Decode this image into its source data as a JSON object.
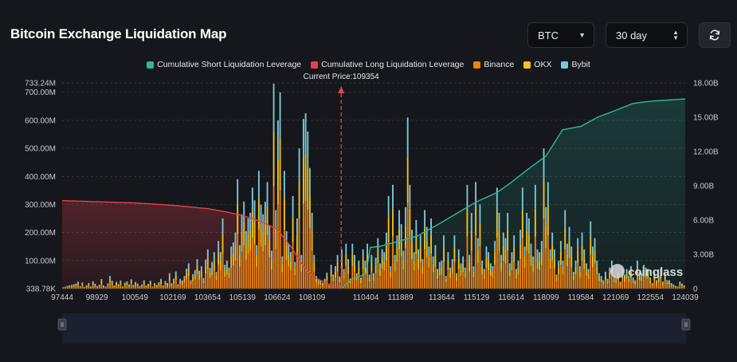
{
  "page": {
    "title": "Bitcoin Exchange Liquidation Map"
  },
  "controls": {
    "symbol": "BTC",
    "period": "30 day"
  },
  "watermark": "coinglass",
  "chart_data": {
    "type": "bar",
    "stacked": true,
    "legend": [
      {
        "name": "Cumulative Short Liquidation Leverage",
        "color": "#2fb89a"
      },
      {
        "name": "Cumulative Long Liquidation Leverage",
        "color": "#e8404a"
      },
      {
        "name": "Binance",
        "color": "#f0820f"
      },
      {
        "name": "OKX",
        "color": "#f4c21a"
      },
      {
        "name": "Bybit",
        "color": "#7cc8d8"
      }
    ],
    "current_price_label": "Current Price:109354",
    "current_price": 109354,
    "x_ticks": [
      "97444",
      "98929",
      "100549",
      "102169",
      "103654",
      "105139",
      "106624",
      "108109",
      "110404",
      "111889",
      "113644",
      "115129",
      "116614",
      "118099",
      "119584",
      "121069",
      "122554",
      "124039"
    ],
    "x_range": [
      97444,
      124039
    ],
    "y_left_ticks": [
      "338.78K",
      "100.00M",
      "200.00M",
      "300.00M",
      "400.00M",
      "500.00M",
      "600.00M",
      "700.00M",
      "733.24M"
    ],
    "y_left_range": [
      0.33878,
      733.24
    ],
    "y_left_unit": "M",
    "y_right_ticks": [
      "0",
      "3.00B",
      "6.00B",
      "9.00B",
      "12.00B",
      "15.00B",
      "18.00B"
    ],
    "y_right_range": [
      0,
      18
    ],
    "y_right_unit": "B",
    "grid": true,
    "legend_position": "top-center",
    "bar_totals": [
      5,
      7,
      10,
      12,
      13,
      16,
      18,
      25,
      9,
      22,
      6,
      12,
      20,
      8,
      26,
      17,
      9,
      14,
      34,
      12,
      7,
      19,
      45,
      28,
      11,
      24,
      16,
      29,
      8,
      21,
      26,
      15,
      33,
      13,
      24,
      18,
      9,
      15,
      30,
      11,
      17,
      28,
      7,
      20,
      13,
      23,
      35,
      11,
      27,
      20,
      55,
      19,
      36,
      61,
      16,
      35,
      29,
      45,
      71,
      90,
      30,
      52,
      66,
      105,
      64,
      80,
      38,
      104,
      140,
      74,
      95,
      130,
      60,
      170,
      130,
      250,
      85,
      100,
      75,
      150,
      165,
      200,
      390,
      155,
      265,
      310,
      205,
      250,
      270,
      360,
      315,
      155,
      420,
      300,
      265,
      310,
      380,
      225,
      135,
      730,
      280,
      600,
      700,
      115,
      420,
      205,
      160,
      130,
      330,
      95,
      250,
      500,
      120,
      605,
      625,
      560,
      430,
      270,
      120,
      45,
      34,
      28,
      21,
      35,
      57,
      12,
      85,
      50,
      80,
      120,
      44,
      140,
      70,
      160,
      105,
      36,
      160,
      120,
      55,
      100,
      40,
      140,
      100,
      160,
      50,
      120,
      55,
      110,
      180,
      90,
      140,
      130,
      200,
      330,
      80,
      370,
      120,
      190,
      280,
      230,
      135,
      290,
      610,
      370,
      210,
      130,
      245,
      140,
      190,
      105,
      280,
      220,
      150,
      250,
      115,
      155,
      70,
      95,
      100,
      190,
      45,
      130,
      75,
      105,
      190,
      55,
      140,
      90,
      115,
      75,
      370,
      120,
      270,
      80,
      380,
      180,
      300,
      100,
      70,
      150,
      130,
      90,
      80,
      170,
      360,
      270,
      120,
      200,
      180,
      270,
      90,
      130,
      190,
      70,
      100,
      210,
      360,
      150,
      270,
      250,
      160,
      115,
      370,
      140,
      130,
      170,
      500,
      290,
      380,
      140,
      200,
      140,
      50,
      100,
      170,
      100,
      280,
      160,
      220,
      150,
      60,
      100,
      180,
      80,
      200,
      140,
      90,
      70,
      240,
      150,
      180,
      100,
      55,
      45,
      30,
      60,
      35,
      75,
      100,
      45,
      40,
      60,
      25,
      70,
      50,
      70,
      45,
      80,
      40,
      30,
      100,
      60,
      55,
      85,
      75,
      70,
      40,
      20,
      60,
      30,
      45,
      70,
      25,
      55,
      30,
      30,
      20,
      15,
      10,
      8,
      25,
      18,
      12
    ],
    "short_cumulative_path": [
      [
        109354,
        0.0
      ],
      [
        109800,
        0.8
      ],
      [
        110404,
        1.3
      ],
      [
        110600,
        3.6
      ],
      [
        111000,
        3.7
      ],
      [
        111889,
        4.2
      ],
      [
        112600,
        4.6
      ],
      [
        113644,
        5.8
      ],
      [
        114300,
        6.6
      ],
      [
        115129,
        7.6
      ],
      [
        116000,
        8.4
      ],
      [
        116614,
        9.3
      ],
      [
        117300,
        10.4
      ],
      [
        118099,
        11.6
      ],
      [
        118800,
        13.9
      ],
      [
        119584,
        14.2
      ],
      [
        120300,
        15.0
      ],
      [
        121069,
        15.6
      ],
      [
        121800,
        16.2
      ],
      [
        122554,
        16.4
      ],
      [
        123300,
        16.5
      ],
      [
        124039,
        16.6
      ]
    ],
    "long_cumulative_path": [
      [
        97444,
        7.7
      ],
      [
        99000,
        7.6
      ],
      [
        100549,
        7.5
      ],
      [
        102169,
        7.3
      ],
      [
        103654,
        7.0
      ],
      [
        104500,
        6.7
      ],
      [
        105139,
        6.4
      ],
      [
        105900,
        5.9
      ],
      [
        106624,
        5.2
      ],
      [
        107200,
        3.7
      ],
      [
        107700,
        2.1
      ],
      [
        108109,
        1.1
      ],
      [
        108800,
        0.4
      ],
      [
        109354,
        0.0
      ]
    ]
  }
}
